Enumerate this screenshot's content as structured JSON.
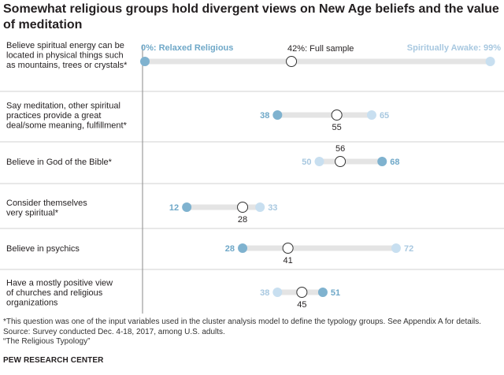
{
  "chart_data": {
    "type": "dot",
    "title": "Somewhat religious groups hold divergent views on New Age beliefs and the value of meditation",
    "xlim": [
      0,
      100
    ],
    "series": [
      {
        "name": "Relaxed Religious",
        "color": "#7fb2cf"
      },
      {
        "name": "Full sample",
        "color": "#ffffff"
      },
      {
        "name": "Spiritually Awake",
        "color": "#c8dff0"
      }
    ],
    "legend_labels": {
      "relaxed": "0%: Relaxed Religious",
      "full": "42%: Full sample",
      "awake": "Spiritually Awake: 99%"
    },
    "rows": [
      {
        "label_lines": [
          "Believe spiritual energy can be",
          "located in physical things such",
          "as mountains, trees or crystals*"
        ],
        "relaxed": 0,
        "full": 42,
        "awake": 99,
        "relaxed_label": "",
        "full_label": "",
        "awake_label": ""
      },
      {
        "label_lines": [
          "Say meditation, other spiritual",
          "practices provide a great",
          "deal/some meaning, fulfillment*"
        ],
        "relaxed": 38,
        "full": 55,
        "awake": 65,
        "relaxed_label": "38",
        "full_label": "55",
        "awake_label": "65"
      },
      {
        "label_lines": [
          "Believe in God of the Bible*"
        ],
        "relaxed": 68,
        "full": 56,
        "awake": 50,
        "relaxed_label": "68",
        "full_label": "56",
        "awake_label": "50"
      },
      {
        "label_lines": [
          "Consider themselves",
          "very spiritual*"
        ],
        "relaxed": 12,
        "full": 28,
        "awake": 33,
        "relaxed_label": "12",
        "full_label": "28",
        "awake_label": "33"
      },
      {
        "label_lines": [
          "Believe in psychics"
        ],
        "relaxed": 28,
        "full": 41,
        "awake": 72,
        "relaxed_label": "28",
        "full_label": "41",
        "awake_label": "72"
      },
      {
        "label_lines": [
          "Have a mostly positive view",
          "of churches and religious",
          "organizations"
        ],
        "relaxed": 51,
        "full": 45,
        "awake": 38,
        "relaxed_label": "51",
        "full_label": "45",
        "awake_label": "38"
      }
    ]
  },
  "notes": [
    "*This question was one of the input variables used in the cluster analysis model to define the typology groups. See Appendix A for details.",
    "Source: Survey conducted Dec. 4-18, 2017, among U.S. adults.",
    "“The Religious Typology”"
  ],
  "org": "PEW RESEARCH CENTER"
}
